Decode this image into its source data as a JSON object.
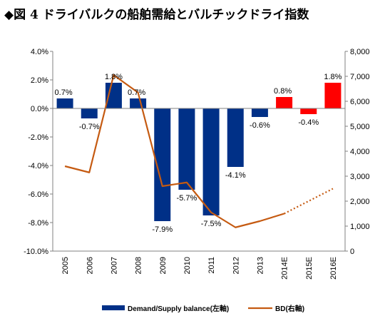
{
  "figure": {
    "title": "◆図 4 ドライバルクの船舶需給とバルチックドライ指数"
  },
  "chart_data": {
    "type": "bar",
    "title": "ドライバルクの船舶需給とバルチックドライ指数",
    "categories": [
      "2005",
      "2006",
      "2007",
      "2008",
      "2009",
      "2010",
      "2011",
      "2012",
      "2013",
      "2014E",
      "2015E",
      "2016E"
    ],
    "series": [
      {
        "name": "Demand/Supply balance(左軸)",
        "type": "bar",
        "axis": "left",
        "values": [
          0.7,
          -0.7,
          1.8,
          0.7,
          -7.9,
          -5.7,
          -7.5,
          -4.1,
          -0.6,
          0.8,
          -0.4,
          1.8
        ],
        "labels": [
          "0.7%",
          "-0.7%",
          "1.8%",
          "0.7%",
          "-7.9%",
          "-5.7%",
          "-7.5%",
          "-4.1%",
          "-0.6%",
          "0.8%",
          "-0.4%",
          "1.8%"
        ],
        "colors": [
          "#003087",
          "#003087",
          "#003087",
          "#003087",
          "#003087",
          "#003087",
          "#003087",
          "#003087",
          "#003087",
          "#ff0000",
          "#ff0000",
          "#ff0000"
        ]
      },
      {
        "name": "BD(右軸)",
        "type": "line",
        "axis": "right",
        "color": "#c55a11",
        "values": [
          3400,
          3150,
          7050,
          6350,
          2600,
          2750,
          1550,
          950,
          1200,
          1500,
          2000,
          2500
        ],
        "dashed_from_index": 9
      }
    ],
    "y_left": {
      "min": -10,
      "max": 4,
      "step": 2,
      "ticks": [
        "4.0%",
        "2.0%",
        "0.0%",
        "-2.0%",
        "-4.0%",
        "-6.0%",
        "-8.0%",
        "-10.0%"
      ]
    },
    "y_right": {
      "min": 0,
      "max": 8000,
      "step": 1000,
      "ticks": [
        "8,000",
        "7,000",
        "6,000",
        "5,000",
        "4,000",
        "3,000",
        "2,000",
        "1,000",
        "0"
      ]
    },
    "grid": false,
    "legend_position": "bottom"
  }
}
